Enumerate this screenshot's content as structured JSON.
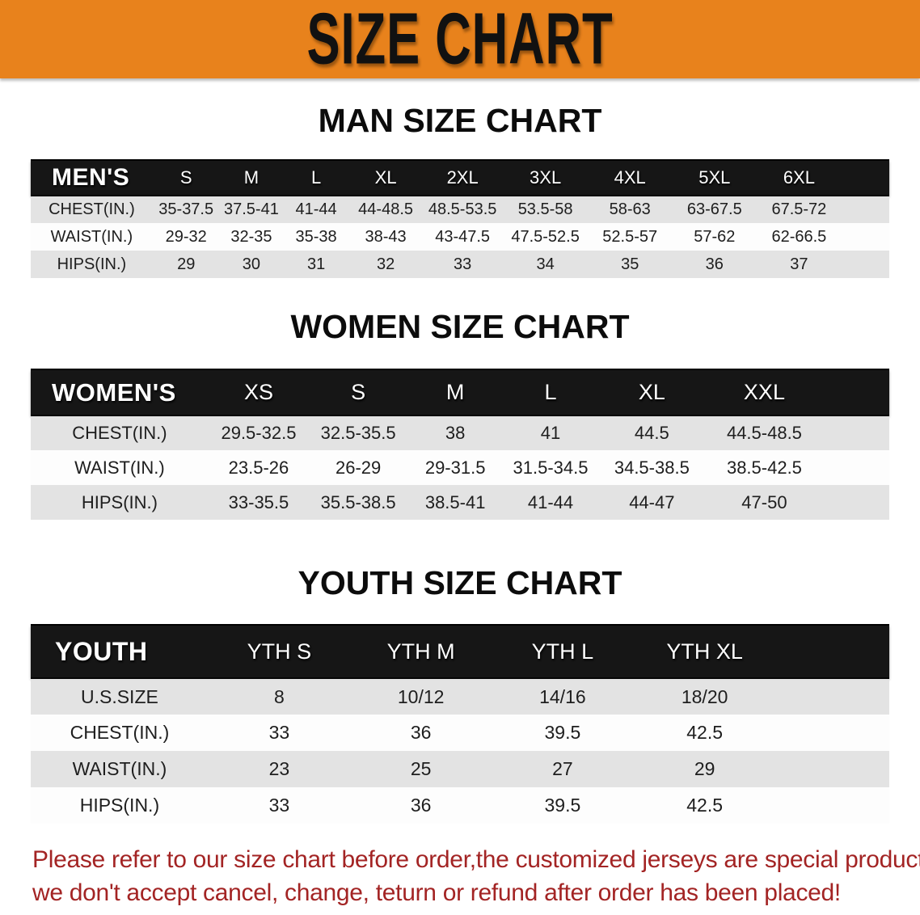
{
  "banner": {
    "title": "SIZE CHART",
    "bg_color": "#E8821C"
  },
  "sections": [
    {
      "heading": "MAN SIZE CHART",
      "table": {
        "corner_label": "MEN'S",
        "columns": [
          "S",
          "M",
          "L",
          "XL",
          "2XL",
          "3XL",
          "4XL",
          "5XL",
          "6XL"
        ],
        "rows": [
          {
            "label": "CHEST(IN.)",
            "values": [
              "35-37.5",
              "37.5-41",
              "41-44",
              "44-48.5",
              "48.5-53.5",
              "53.5-58",
              "58-63",
              "63-67.5",
              "67.5-72"
            ]
          },
          {
            "label": "WAIST(IN.)",
            "values": [
              "29-32",
              "32-35",
              "35-38",
              "38-43",
              "43-47.5",
              "47.5-52.5",
              "52.5-57",
              "57-62",
              "62-66.5"
            ]
          },
          {
            "label": "HIPS(IN.)",
            "values": [
              "29",
              "30",
              "31",
              "32",
              "33",
              "34",
              "35",
              "36",
              "37"
            ]
          }
        ]
      }
    },
    {
      "heading": "WOMEN SIZE CHART",
      "table": {
        "corner_label": "WOMEN'S",
        "columns": [
          "XS",
          "S",
          "M",
          "L",
          "XL",
          "XXL"
        ],
        "rows": [
          {
            "label": "CHEST(IN.)",
            "values": [
              "29.5-32.5",
              "32.5-35.5",
              "38",
              "41",
              "44.5",
              "44.5-48.5"
            ]
          },
          {
            "label": "WAIST(IN.)",
            "values": [
              "23.5-26",
              "26-29",
              "29-31.5",
              "31.5-34.5",
              "34.5-38.5",
              "38.5-42.5"
            ]
          },
          {
            "label": "HIPS(IN.)",
            "values": [
              "33-35.5",
              "35.5-38.5",
              "38.5-41",
              "41-44",
              "44-47",
              "47-50"
            ]
          }
        ]
      }
    },
    {
      "heading": "YOUTH SIZE CHART",
      "table": {
        "corner_label": "YOUTH",
        "columns": [
          "YTH S",
          "YTH M",
          "YTH L",
          "YTH XL"
        ],
        "rows": [
          {
            "label": "U.S.SIZE",
            "values": [
              "8",
              "10/12",
              "14/16",
              "18/20"
            ]
          },
          {
            "label": "CHEST(IN.)",
            "values": [
              "33",
              "36",
              "39.5",
              "42.5"
            ]
          },
          {
            "label": "WAIST(IN.)",
            "values": [
              "23",
              "25",
              "27",
              "29"
            ]
          },
          {
            "label": "HIPS(IN.)",
            "values": [
              "33",
              "36",
              "39.5",
              "42.5"
            ]
          }
        ]
      }
    }
  ],
  "disclaimer": {
    "line1": "Please refer to our size chart before order,the customized jerseys are special products,",
    "line2": "we don't accept cancel, change, teturn or refund after order has been placed!",
    "color": "#A32424"
  }
}
